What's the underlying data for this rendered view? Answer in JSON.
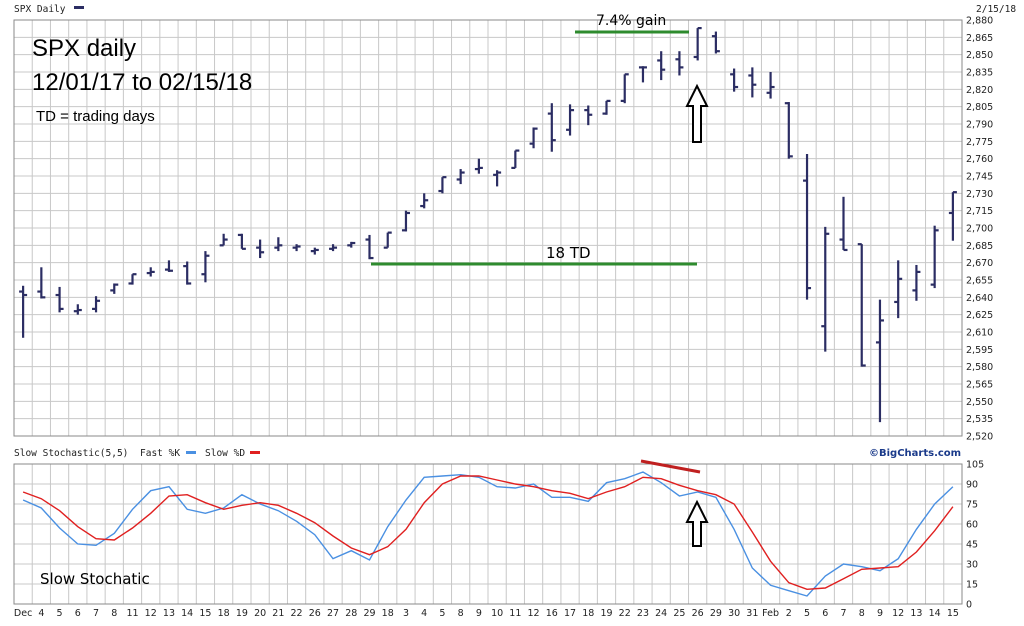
{
  "header": {
    "series_label": "SPX Daily",
    "date_label": "2/15/18",
    "indicator_label": "Slow Stochastic(5,5)",
    "fast_label": "Fast %K",
    "slow_label": "Slow %D",
    "brand": "©BigCharts.com"
  },
  "annotations": {
    "title_line1": "SPX daily",
    "title_line2": "12/01/17 to 02/15/18",
    "note": "TD = trading days",
    "gain_label": "7.4% gain",
    "td_label": "18 TD",
    "stoch_label": "Slow Stochatic"
  },
  "colors": {
    "bars": "#2b2d63",
    "fast_k": "#4a90e2",
    "slow_d": "#e02020",
    "annotation_lines": "#2e8b2e",
    "divergence_line": "#c02020"
  },
  "chart_data": [
    {
      "type": "ohlc",
      "ylim": [
        2520,
        2880
      ],
      "yticks": [
        2520,
        2535,
        2550,
        2565,
        2580,
        2595,
        2610,
        2625,
        2640,
        2655,
        2670,
        2685,
        2700,
        2715,
        2730,
        2745,
        2760,
        2775,
        2790,
        2805,
        2820,
        2835,
        2850,
        2865,
        2880
      ],
      "categories": [
        "Dec",
        "4",
        "5",
        "6",
        "7",
        "8",
        "11",
        "12",
        "13",
        "14",
        "15",
        "18",
        "19",
        "20",
        "21",
        "22",
        "26",
        "27",
        "28",
        "29",
        "18",
        "3",
        "4",
        "5",
        "8",
        "9",
        "10",
        "11",
        "12",
        "16",
        "17",
        "18",
        "19",
        "22",
        "23",
        "24",
        "25",
        "26",
        "29",
        "30",
        "31",
        "Feb",
        "2",
        "5",
        "6",
        "7",
        "8",
        "9",
        "12",
        "13",
        "14",
        "15"
      ],
      "ohlc": [
        [
          2645,
          2650,
          2605,
          2642
        ],
        [
          2645,
          2666,
          2639,
          2640
        ],
        [
          2642,
          2649,
          2627,
          2630
        ],
        [
          2628,
          2634,
          2625,
          2629
        ],
        [
          2630,
          2641,
          2627,
          2637
        ],
        [
          2646,
          2652,
          2643,
          2651
        ],
        [
          2652,
          2660,
          2651,
          2660
        ],
        [
          2661,
          2666,
          2658,
          2662
        ],
        [
          2664,
          2672,
          2662,
          2663
        ],
        [
          2667,
          2671,
          2651,
          2652
        ],
        [
          2660,
          2680,
          2653,
          2676
        ],
        [
          2685,
          2695,
          2685,
          2690
        ],
        [
          2694,
          2695,
          2682,
          2682
        ],
        [
          2683,
          2690,
          2674,
          2679
        ],
        [
          2683,
          2692,
          2680,
          2685
        ],
        [
          2683,
          2686,
          2680,
          2684
        ],
        [
          2680,
          2683,
          2677,
          2681
        ],
        [
          2682,
          2686,
          2680,
          2683
        ],
        [
          2685,
          2688,
          2683,
          2687
        ],
        [
          2690,
          2694,
          2673,
          2674
        ],
        [
          2683,
          2696,
          2683,
          2696
        ],
        [
          2698,
          2715,
          2697,
          2713
        ],
        [
          2719,
          2730,
          2717,
          2724
        ],
        [
          2732,
          2744,
          2730,
          2744
        ],
        [
          2742,
          2751,
          2738,
          2748
        ],
        [
          2751,
          2760,
          2747,
          2752
        ],
        [
          2746,
          2750,
          2736,
          2748
        ],
        [
          2752,
          2767,
          2752,
          2767
        ],
        [
          2773,
          2787,
          2769,
          2786
        ],
        [
          2799,
          2808,
          2766,
          2776
        ],
        [
          2785,
          2807,
          2780,
          2802
        ],
        [
          2802,
          2806,
          2789,
          2798
        ],
        [
          2799,
          2810,
          2798,
          2810
        ],
        [
          2810,
          2833,
          2808,
          2833
        ],
        [
          2839,
          2840,
          2826,
          2839
        ],
        [
          2845,
          2853,
          2828,
          2837
        ],
        [
          2846,
          2853,
          2832,
          2839
        ],
        [
          2848,
          2873,
          2845,
          2873
        ],
        [
          2866,
          2870,
          2851,
          2853
        ],
        [
          2833,
          2838,
          2818,
          2822
        ],
        [
          2832,
          2839,
          2813,
          2824
        ],
        [
          2817,
          2835,
          2812,
          2822
        ],
        [
          2808,
          2809,
          2760,
          2762
        ],
        [
          2741,
          2764,
          2638,
          2648
        ],
        [
          2615,
          2701,
          2593,
          2695
        ],
        [
          2690,
          2727,
          2681,
          2681
        ],
        [
          2686,
          2686,
          2580,
          2581
        ],
        [
          2601,
          2638,
          2532,
          2620
        ],
        [
          2636,
          2672,
          2622,
          2656
        ],
        [
          2646,
          2668,
          2637,
          2662
        ],
        [
          2651,
          2702,
          2648,
          2698
        ],
        [
          2713,
          2731,
          2689,
          2731
        ]
      ]
    },
    {
      "type": "line",
      "ylim": [
        0,
        105
      ],
      "yticks": [
        0,
        15,
        30,
        45,
        60,
        75,
        90,
        105
      ],
      "series": [
        {
          "name": "Fast %K",
          "values": [
            78,
            72,
            57,
            45,
            44,
            53,
            71,
            85,
            88,
            71,
            68,
            72,
            82,
            75,
            70,
            62,
            52,
            34,
            40,
            33,
            58,
            78,
            95,
            96,
            97,
            95,
            88,
            87,
            90,
            80,
            80,
            77,
            91,
            94,
            99,
            91,
            81,
            84,
            80,
            56,
            27,
            14,
            10,
            6,
            21,
            30,
            28,
            25,
            34,
            56,
            75,
            88
          ]
        },
        {
          "name": "Slow %D",
          "values": [
            84,
            79,
            70,
            58,
            49,
            48,
            57,
            68,
            81,
            82,
            76,
            71,
            74,
            76,
            74,
            68,
            61,
            51,
            42,
            37,
            43,
            56,
            76,
            90,
            96,
            96,
            93,
            90,
            88,
            85,
            83,
            79,
            84,
            88,
            95,
            94,
            89,
            85,
            82,
            75,
            54,
            32,
            16,
            11,
            12,
            19,
            26,
            27,
            28,
            39,
            55,
            73
          ]
        }
      ]
    }
  ]
}
